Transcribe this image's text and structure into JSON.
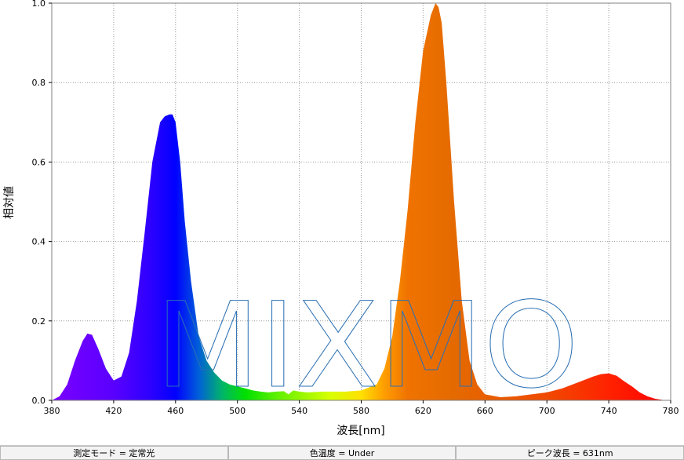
{
  "chart_data": {
    "type": "area",
    "xlabel": "波長[nm]",
    "ylabel": "相対値",
    "xlim": [
      380,
      780
    ],
    "ylim": [
      0,
      1.0
    ],
    "x_ticks": [
      "380",
      "420",
      "460",
      "500",
      "540",
      "580",
      "620",
      "660",
      "700",
      "740",
      "780"
    ],
    "y_ticks": [
      "0.0",
      "0.2",
      "0.4",
      "0.6",
      "0.8",
      "1.0"
    ],
    "grid": true,
    "fill": "spectrum-gradient",
    "series": [
      {
        "x": [
          380,
          385,
          390,
          395,
          400,
          403,
          406,
          410,
          415,
          420,
          425,
          430,
          435,
          440,
          445,
          450,
          453,
          456,
          458,
          460,
          463,
          466,
          470,
          475,
          480,
          485,
          490,
          495,
          500,
          505,
          510,
          515,
          520,
          525,
          530,
          533,
          536,
          540,
          545,
          550,
          555,
          560,
          570,
          580,
          590,
          595,
          600,
          605,
          610,
          615,
          620,
          625,
          628,
          630,
          632,
          635,
          640,
          645,
          650,
          655,
          660,
          670,
          680,
          690,
          700,
          710,
          720,
          730,
          735,
          740,
          745,
          750,
          755,
          760,
          765,
          770,
          775,
          780
        ],
        "y": [
          0.0,
          0.01,
          0.04,
          0.1,
          0.15,
          0.168,
          0.165,
          0.13,
          0.08,
          0.05,
          0.06,
          0.12,
          0.25,
          0.42,
          0.6,
          0.7,
          0.715,
          0.72,
          0.72,
          0.7,
          0.6,
          0.45,
          0.3,
          0.16,
          0.1,
          0.07,
          0.05,
          0.04,
          0.035,
          0.03,
          0.025,
          0.022,
          0.02,
          0.022,
          0.023,
          0.015,
          0.025,
          0.022,
          0.02,
          0.021,
          0.022,
          0.022,
          0.022,
          0.025,
          0.04,
          0.08,
          0.16,
          0.3,
          0.48,
          0.7,
          0.88,
          0.97,
          1.0,
          0.99,
          0.95,
          0.8,
          0.5,
          0.25,
          0.1,
          0.04,
          0.015,
          0.008,
          0.01,
          0.015,
          0.02,
          0.03,
          0.045,
          0.06,
          0.066,
          0.068,
          0.062,
          0.048,
          0.035,
          0.02,
          0.01,
          0.004,
          0.001,
          0.0
        ]
      }
    ]
  },
  "watermark": "MIXMO",
  "statusbar": {
    "mode": "測定モード = 定常光",
    "color_temp": "色温度 = Under",
    "peak_wavelength": "ピーク波長 = 631nm"
  }
}
